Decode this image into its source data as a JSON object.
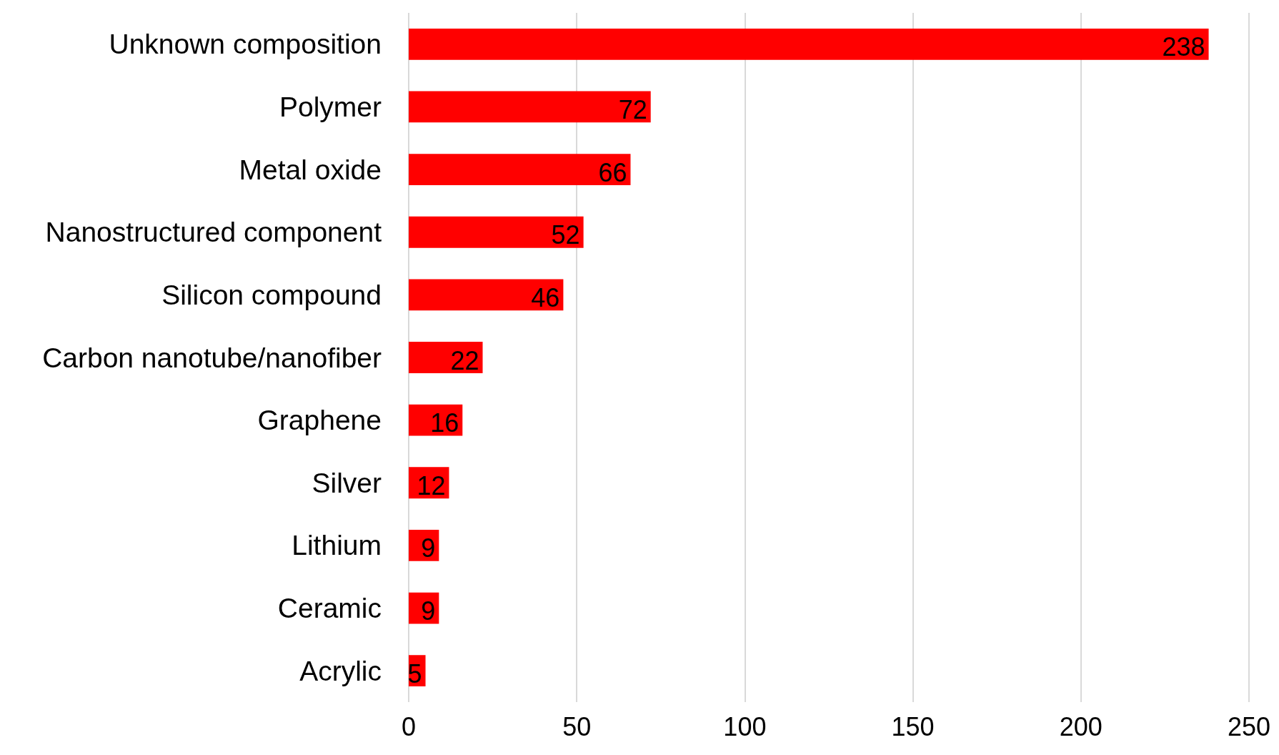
{
  "chart_data": {
    "type": "bar",
    "orientation": "horizontal",
    "categories": [
      "Unknown composition",
      "Polymer",
      "Metal oxide",
      "Nanostructured component",
      "Silicon compound",
      "Carbon nanotube/nanofiber",
      "Graphene",
      "Silver",
      "Lithium",
      "Ceramic",
      "Acrylic"
    ],
    "values": [
      238,
      72,
      66,
      52,
      46,
      22,
      16,
      12,
      9,
      9,
      5
    ],
    "color": "#ff0000",
    "xlim": [
      0,
      250
    ],
    "xticks": [
      0,
      50,
      100,
      150,
      200,
      250
    ],
    "grid": "x",
    "data_labels": true
  }
}
